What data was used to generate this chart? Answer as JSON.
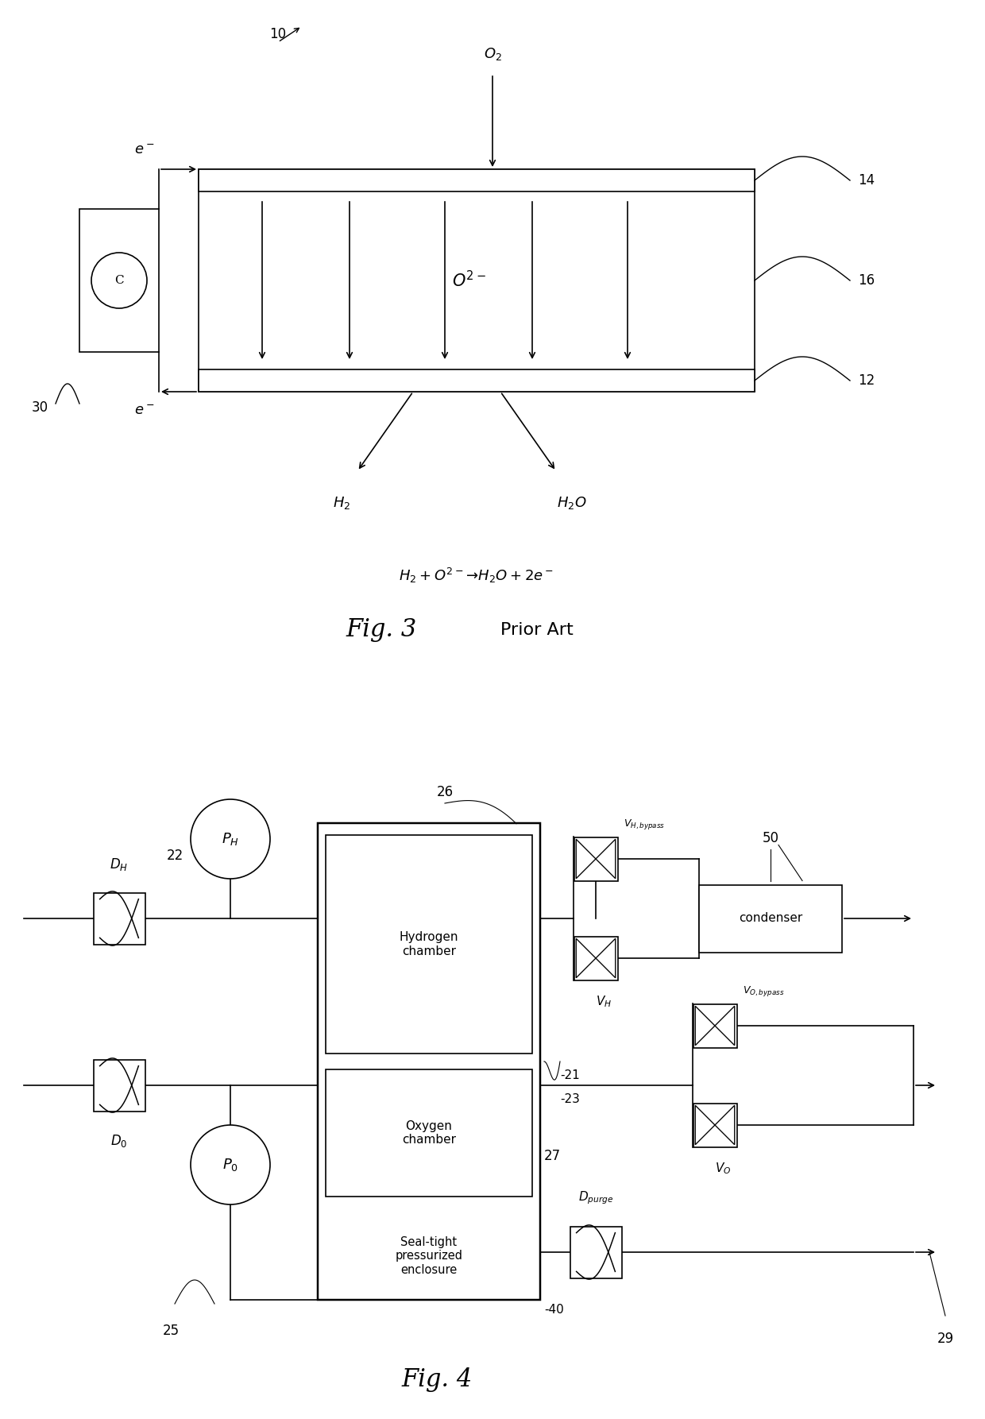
{
  "fig_width": 12.4,
  "fig_height": 17.86,
  "bg_color": "#ffffff",
  "line_color": "#000000",
  "lw": 1.2,
  "fig3": {
    "title": "Fig. 3",
    "subtitle": " Prior Art"
  },
  "fig4": {
    "title": "Fig. 4"
  }
}
